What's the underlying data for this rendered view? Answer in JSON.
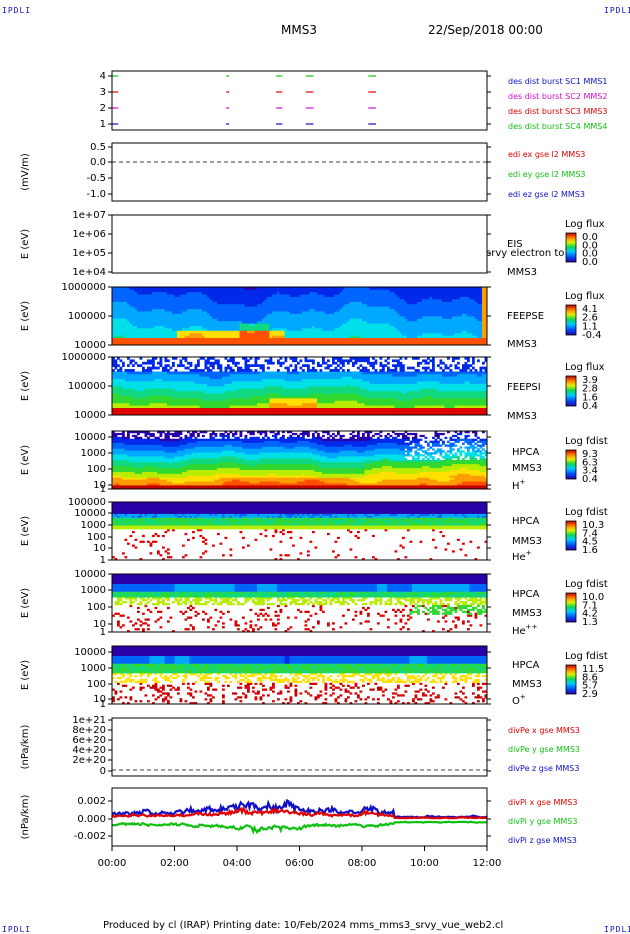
{
  "corners": {
    "tl": "IPDLI",
    "tr": "IPDLI",
    "bl": "IPDLI",
    "br": "IPDLI"
  },
  "header": {
    "spacecraft": "MMS3",
    "datetime": "22/Sep/2018 00:00"
  },
  "footer": {
    "text": "Produced by cl (IRAP)   Printing date: 10/Feb/2024   mms_mms3_srvy_vue_web2.cl"
  },
  "colors": {
    "blue": "#1010c8",
    "magenta": "#d010d0",
    "red": "#e00000",
    "green": "#10c010"
  },
  "chart_data": [
    {
      "type": "line",
      "id": "burst",
      "ticks": [
        "4",
        "3",
        "2",
        "1"
      ],
      "legend": [
        {
          "name": "des dist burst SC1 MMS1",
          "color": "#1010c8"
        },
        {
          "name": "des dist burst SC2 MMS2",
          "color": "#d010d0"
        },
        {
          "name": "des dist burst SC3 MMS3",
          "color": "#e00000"
        },
        {
          "name": "des dist burst SC4 MMS4",
          "color": "#10c010"
        }
      ],
      "intervals_hours": [
        [
          0.0,
          0.2
        ],
        [
          3.65,
          3.75
        ],
        [
          5.25,
          5.45
        ],
        [
          6.2,
          6.45
        ],
        [
          8.2,
          8.45
        ]
      ]
    },
    {
      "type": "line",
      "id": "edi",
      "ylabel": "(mV/m)",
      "ticks": [
        "0.5",
        "0.0",
        "-0.5",
        "-1.0"
      ],
      "legend": [
        {
          "name": "edi ex gse l2 MMS3",
          "color": "#e00000"
        },
        {
          "name": "edi ey gse l2 MMS3",
          "color": "#10c010"
        },
        {
          "name": "edi ez gse l2 MMS3",
          "color": "#1010c8"
        }
      ]
    },
    {
      "type": "heatmap",
      "id": "eis",
      "ylabel": "E (eV)",
      "ticks": [
        "1e+07",
        "1e+06",
        "1e+05",
        "1e+04"
      ],
      "labels": [
        "EIS",
        "MMS3"
      ],
      "overlay": "srvy electron to",
      "cb_title": "Log flux",
      "cb_ticks": [
        "0.0",
        "0.0",
        "0.0",
        "0.0"
      ]
    },
    {
      "type": "heatmap",
      "id": "feepse",
      "ylabel": "E (eV)",
      "ticks": [
        "1000000",
        "100000",
        "10000"
      ],
      "labels": [
        "FEEPSE",
        "MMS3"
      ],
      "cb_title": "Log flux",
      "cb_ticks": [
        "4.1",
        "2.6",
        "1.1",
        "-0.4"
      ]
    },
    {
      "type": "heatmap",
      "id": "feepsi",
      "ylabel": "E (eV)",
      "ticks": [
        "1000000",
        "100000",
        "10000"
      ],
      "labels": [
        "FEEPSI",
        "MMS3"
      ],
      "cb_title": "Log flux",
      "cb_ticks": [
        "3.9",
        "2.8",
        "1.6",
        "0.4"
      ]
    },
    {
      "type": "heatmap",
      "id": "hpca_h",
      "ylabel": "E (eV)",
      "ticks": [
        "10000",
        "1000",
        "100",
        "10",
        "1"
      ],
      "labels": [
        "HPCA",
        "MMS3",
        "H"
      ],
      "species_sup": "+",
      "cb_title": "Log fdist",
      "cb_ticks": [
        "9.3",
        "6.3",
        "3.4",
        "0.4"
      ]
    },
    {
      "type": "heatmap",
      "id": "hpca_he",
      "ylabel": "E (eV)",
      "ticks": [
        "100000",
        "10000",
        "1000",
        "100",
        "10",
        "1"
      ],
      "labels": [
        "HPCA",
        "MMS3",
        "He"
      ],
      "species_sup": "+",
      "cb_title": "Log fdist",
      "cb_ticks": [
        "10.3",
        "7.4",
        "4.5",
        "1.6"
      ]
    },
    {
      "type": "heatmap",
      "id": "hpca_hepp",
      "ylabel": "E (eV)",
      "ticks": [
        "10000",
        "1000",
        "100",
        "10",
        "1"
      ],
      "labels": [
        "HPCA",
        "MMS3",
        "He"
      ],
      "species_sup": "++",
      "cb_title": "Log fdist",
      "cb_ticks": [
        "10.0",
        "7.1",
        "4.2",
        "1.3"
      ]
    },
    {
      "type": "heatmap",
      "id": "hpca_o",
      "ylabel": "E (eV)",
      "ticks": [
        "10000",
        "1000",
        "100",
        "10",
        "1"
      ],
      "labels": [
        "HPCA",
        "MMS3",
        "O"
      ],
      "species_sup": "+",
      "cb_title": "Log fdist",
      "cb_ticks": [
        "11.5",
        "8.6",
        "5.7",
        "2.9"
      ]
    },
    {
      "type": "line",
      "id": "divpe",
      "ylabel": "(nPa/km)",
      "ticks": [
        "1e+21",
        "8e+20",
        "6e+20",
        "4e+20",
        "2e+20",
        "0"
      ],
      "legend": [
        {
          "name": "divPe x gse MMS3",
          "color": "#e00000"
        },
        {
          "name": "divPe y gse MMS3",
          "color": "#10c010"
        },
        {
          "name": "divPe z gse MMS3",
          "color": "#1010c8"
        }
      ]
    },
    {
      "type": "line",
      "id": "divpi",
      "ylabel": "(nPa/km)",
      "ticks": [
        "0.002",
        "0.000",
        "-0.002"
      ],
      "legend": [
        {
          "name": "divPi x gse MMS3",
          "color": "#e00000"
        },
        {
          "name": "divPi y gse MMS3",
          "color": "#10c010"
        },
        {
          "name": "divPi z gse MMS3",
          "color": "#1010c8"
        }
      ]
    }
  ],
  "time_axis": {
    "ticks": [
      "00:00",
      "02:00",
      "04:00",
      "06:00",
      "08:00",
      "10:00",
      "12:00"
    ]
  }
}
